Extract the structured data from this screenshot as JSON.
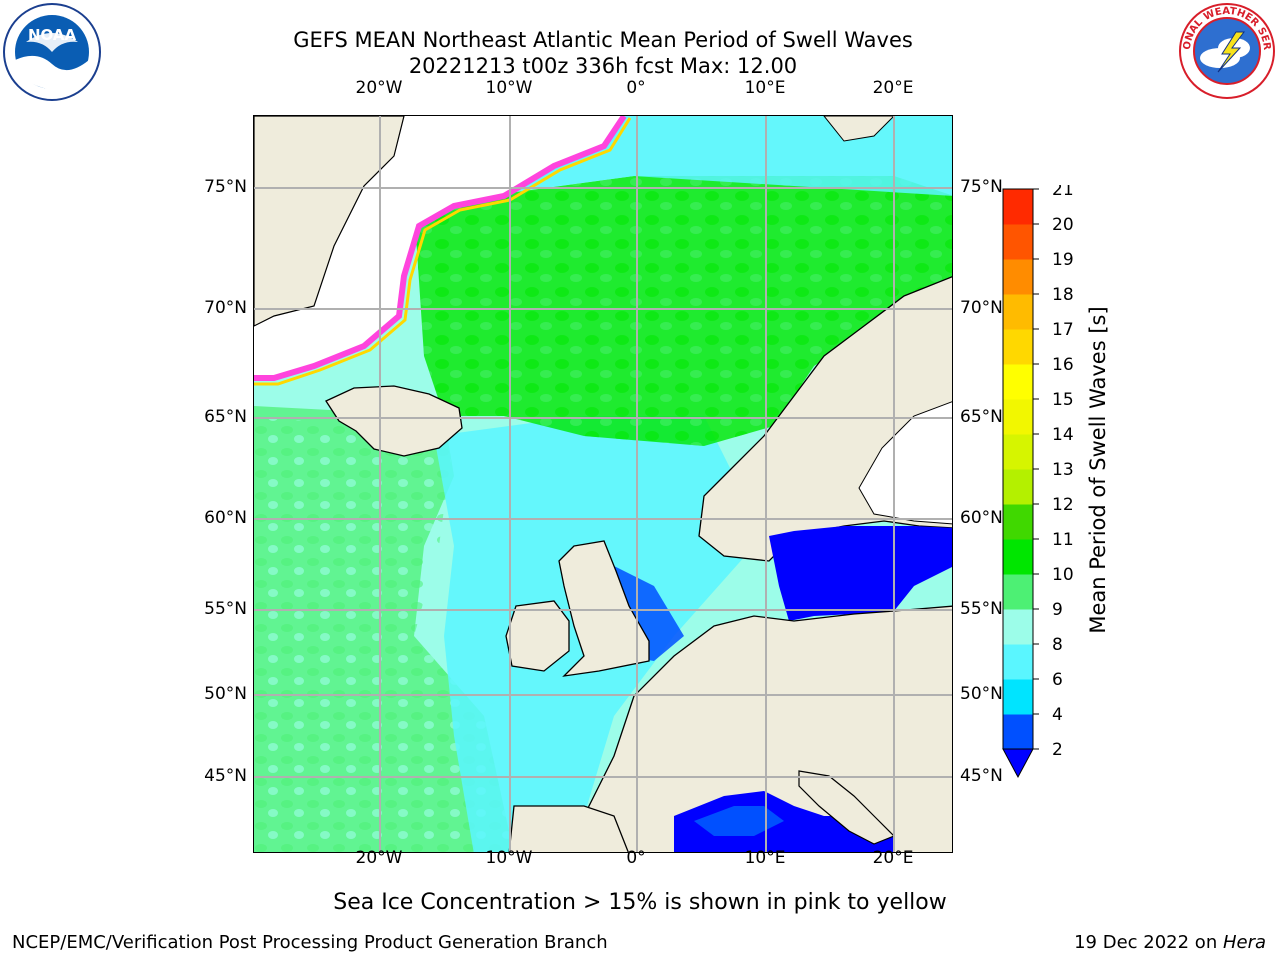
{
  "title": {
    "line1": "GEFS MEAN Northeast Atlantic Mean Period of Swell Waves",
    "line2": "20221213 t00z 336h fcst   Max: 12.00"
  },
  "axes": {
    "lon_labels": [
      "20°W",
      "10°W",
      "0°",
      "10°E",
      "20°E"
    ],
    "lat_labels_left": [
      "75°N",
      "70°N",
      "65°N",
      "60°N",
      "55°N",
      "50°N",
      "45°N"
    ],
    "lat_labels_right": [
      "75°N",
      "70°N",
      "65°N",
      "60°N",
      "55°N",
      "50°N",
      "45°N"
    ]
  },
  "colorbar": {
    "label": "Mean Period of Swell Waves [s]",
    "levels": [
      "2",
      "4",
      "6",
      "8",
      "9",
      "10",
      "11",
      "12",
      "13",
      "14",
      "15",
      "16",
      "17",
      "18",
      "19",
      "20",
      "21"
    ],
    "colors": [
      "#0050ff",
      "#00e4ff",
      "#5af6ff",
      "#9cfde9",
      "#4df074",
      "#00e600",
      "#40d800",
      "#b4f000",
      "#d6f500",
      "#f2f700",
      "#ffff00",
      "#ffd800",
      "#ffbb00",
      "#ff8c00",
      "#ff5500",
      "#ff2a00",
      "#ff0000"
    ],
    "under_color": "#0000ff"
  },
  "chart_data": {
    "type": "heatmap",
    "variable": "Mean Period of Swell Waves [s]",
    "max": 12.0,
    "lon_range": [
      -30,
      25
    ],
    "lat_range": [
      41,
      78
    ],
    "meridians": [
      -20,
      -10,
      0,
      10,
      20
    ],
    "parallels": [
      45,
      50,
      55,
      60,
      65,
      70,
      75
    ],
    "grid": true
  },
  "logos": {
    "noaa_text": "NOAA",
    "nws_text": "NATIONAL WEATHER SERVICE"
  },
  "caption": "Sea Ice Concentration > 15% is shown in pink to yellow",
  "footer": {
    "left": "NCEP/EMC/Verification Post Processing Product Generation Branch",
    "right_prefix": "19 Dec 2022 on ",
    "right_machine": "Hera"
  }
}
